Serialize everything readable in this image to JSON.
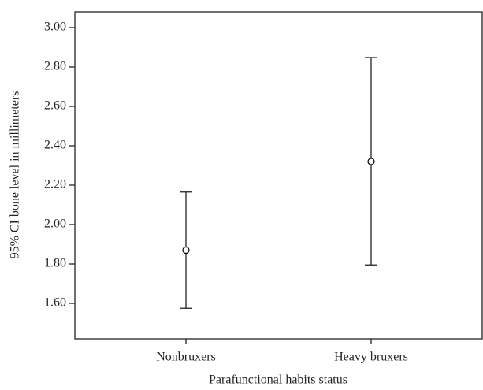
{
  "chart_data": {
    "type": "errorbar",
    "y_label": "95% CI bone level in millimeters",
    "x_label": "Parafunctional habits status",
    "categories": [
      "Nonbruxers",
      "Heavy bruxers"
    ],
    "values": [
      1.87,
      2.32
    ],
    "lower": [
      1.575,
      1.795
    ],
    "upper": [
      2.165,
      2.848
    ],
    "color": "#000000",
    "ylim": [
      1.42,
      3.08
    ],
    "yticks": [
      {
        "value": 1.6,
        "label": "1.60"
      },
      {
        "value": 1.8,
        "label": "1.80"
      },
      {
        "value": 2.0,
        "label": "2.00"
      },
      {
        "value": 2.2,
        "label": "2.20"
      },
      {
        "value": 2.4,
        "label": "2.40"
      },
      {
        "value": 2.6,
        "label": "2.60"
      },
      {
        "value": 2.8,
        "label": "2.80"
      },
      {
        "value": 3.0,
        "label": "3.00"
      }
    ],
    "grid": false
  }
}
